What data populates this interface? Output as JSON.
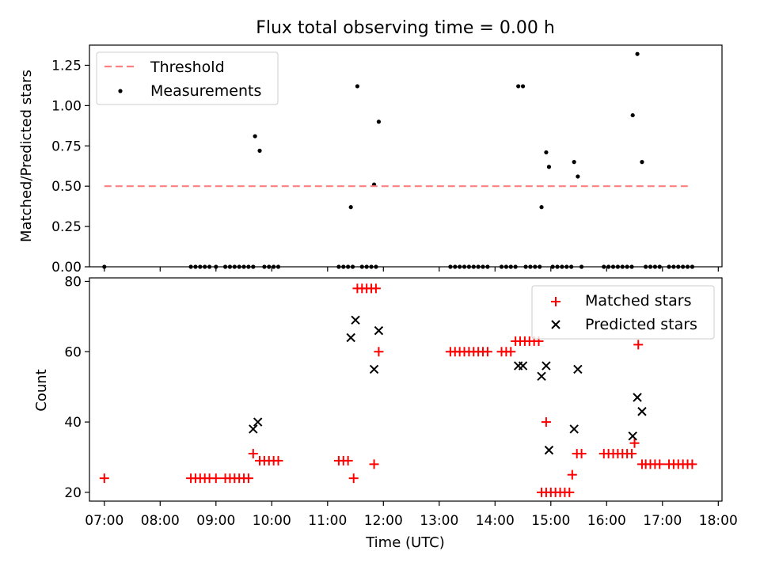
{
  "figure": {
    "title": "Flux total observing time = 0.00 h",
    "xlabel": "Time (UTC)"
  },
  "chart_data": [
    {
      "type": "scatter",
      "title": "Flux total observing time = 0.00 h",
      "xlabel": "",
      "ylabel": "Matched/Predicted stars",
      "ylim": [
        0,
        1.375
      ],
      "xlim": [
        "06:44",
        "18:04"
      ],
      "yticks": [
        "0.00",
        "0.25",
        "0.50",
        "0.75",
        "1.00",
        "1.25"
      ],
      "xtick_labels_shown": false,
      "grid": false,
      "legend": {
        "position": "upper-left",
        "entries": [
          "Threshold",
          "Measurements"
        ]
      },
      "threshold": {
        "name": "Threshold",
        "y": 0.5,
        "x_start": "07:00",
        "x_end": "17:30",
        "color": "#ff8080",
        "style": "dashed"
      },
      "series": [
        {
          "name": "Measurements",
          "marker": "dot",
          "color": "#000000",
          "points": [
            [
              "07:00",
              0.0
            ],
            [
              "08:33",
              0.0
            ],
            [
              "08:38",
              0.0
            ],
            [
              "08:43",
              0.0
            ],
            [
              "08:48",
              0.0
            ],
            [
              "08:53",
              0.0
            ],
            [
              "09:00",
              0.0
            ],
            [
              "09:10",
              0.0
            ],
            [
              "09:15",
              0.0
            ],
            [
              "09:20",
              0.0
            ],
            [
              "09:25",
              0.0
            ],
            [
              "09:30",
              0.0
            ],
            [
              "09:35",
              0.0
            ],
            [
              "09:40",
              0.0
            ],
            [
              "09:42",
              0.81
            ],
            [
              "09:47",
              0.72
            ],
            [
              "09:52",
              0.0
            ],
            [
              "09:57",
              0.0
            ],
            [
              "10:02",
              0.0
            ],
            [
              "10:07",
              0.0
            ],
            [
              "11:12",
              0.0
            ],
            [
              "11:17",
              0.0
            ],
            [
              "11:22",
              0.0
            ],
            [
              "11:27",
              0.0
            ],
            [
              "11:25",
              0.37
            ],
            [
              "11:32",
              1.12
            ],
            [
              "11:37",
              0.0
            ],
            [
              "11:42",
              0.0
            ],
            [
              "11:47",
              0.0
            ],
            [
              "11:52",
              0.0
            ],
            [
              "11:50",
              0.51
            ],
            [
              "11:55",
              0.9
            ],
            [
              "13:12",
              0.0
            ],
            [
              "13:17",
              0.0
            ],
            [
              "13:22",
              0.0
            ],
            [
              "13:27",
              0.0
            ],
            [
              "13:32",
              0.0
            ],
            [
              "13:37",
              0.0
            ],
            [
              "13:42",
              0.0
            ],
            [
              "13:47",
              0.0
            ],
            [
              "13:52",
              0.0
            ],
            [
              "14:07",
              0.0
            ],
            [
              "14:12",
              0.0
            ],
            [
              "14:17",
              0.0
            ],
            [
              "14:22",
              0.0
            ],
            [
              "14:25",
              1.12
            ],
            [
              "14:30",
              1.12
            ],
            [
              "14:33",
              0.0
            ],
            [
              "14:38",
              0.0
            ],
            [
              "14:43",
              0.0
            ],
            [
              "14:48",
              0.0
            ],
            [
              "14:50",
              0.37
            ],
            [
              "14:55",
              0.71
            ],
            [
              "14:58",
              0.62
            ],
            [
              "15:02",
              0.0
            ],
            [
              "15:07",
              0.0
            ],
            [
              "15:12",
              0.0
            ],
            [
              "15:17",
              0.0
            ],
            [
              "15:22",
              0.0
            ],
            [
              "15:25",
              0.65
            ],
            [
              "15:29",
              0.56
            ],
            [
              "15:33",
              0.0
            ],
            [
              "15:57",
              0.0
            ],
            [
              "16:02",
              0.0
            ],
            [
              "16:07",
              0.0
            ],
            [
              "16:12",
              0.0
            ],
            [
              "16:17",
              0.0
            ],
            [
              "16:22",
              0.0
            ],
            [
              "16:27",
              0.0
            ],
            [
              "16:28",
              0.94
            ],
            [
              "16:33",
              1.32
            ],
            [
              "16:38",
              0.65
            ],
            [
              "16:42",
              0.0
            ],
            [
              "16:47",
              0.0
            ],
            [
              "16:52",
              0.0
            ],
            [
              "16:57",
              0.0
            ],
            [
              "17:07",
              0.0
            ],
            [
              "17:12",
              0.0
            ],
            [
              "17:17",
              0.0
            ],
            [
              "17:22",
              0.0
            ],
            [
              "17:27",
              0.0
            ],
            [
              "17:32",
              0.0
            ]
          ]
        }
      ]
    },
    {
      "type": "scatter",
      "xlabel": "Time (UTC)",
      "ylabel": "Count",
      "ylim": [
        17.5,
        81
      ],
      "xlim": [
        "06:44",
        "18:04"
      ],
      "yticks": [
        "20",
        "40",
        "60",
        "80"
      ],
      "xticks": [
        "07:00",
        "08:00",
        "09:00",
        "10:00",
        "11:00",
        "12:00",
        "13:00",
        "14:00",
        "15:00",
        "16:00",
        "17:00",
        "18:00"
      ],
      "grid": false,
      "legend": {
        "position": "upper-right",
        "entries": [
          "Matched stars",
          "Predicted stars"
        ]
      },
      "series": [
        {
          "name": "Matched stars",
          "marker": "plus",
          "color": "#ff0000",
          "points": [
            [
              "07:00",
              24
            ],
            [
              "08:33",
              24
            ],
            [
              "08:38",
              24
            ],
            [
              "08:43",
              24
            ],
            [
              "08:48",
              24
            ],
            [
              "08:53",
              24
            ],
            [
              "09:00",
              24
            ],
            [
              "09:10",
              24
            ],
            [
              "09:15",
              24
            ],
            [
              "09:20",
              24
            ],
            [
              "09:25",
              24
            ],
            [
              "09:30",
              24
            ],
            [
              "09:35",
              24
            ],
            [
              "09:40",
              31
            ],
            [
              "09:47",
              29
            ],
            [
              "09:52",
              29
            ],
            [
              "09:57",
              29
            ],
            [
              "10:02",
              29
            ],
            [
              "10:07",
              29
            ],
            [
              "11:12",
              29
            ],
            [
              "11:17",
              29
            ],
            [
              "11:22",
              29
            ],
            [
              "11:28",
              24
            ],
            [
              "11:32",
              78
            ],
            [
              "11:37",
              78
            ],
            [
              "11:42",
              78
            ],
            [
              "11:47",
              78
            ],
            [
              "11:52",
              78
            ],
            [
              "11:50",
              28
            ],
            [
              "11:55",
              60
            ],
            [
              "13:12",
              60
            ],
            [
              "13:17",
              60
            ],
            [
              "13:22",
              60
            ],
            [
              "13:27",
              60
            ],
            [
              "13:32",
              60
            ],
            [
              "13:37",
              60
            ],
            [
              "13:42",
              60
            ],
            [
              "13:47",
              60
            ],
            [
              "13:52",
              60
            ],
            [
              "14:07",
              60
            ],
            [
              "14:12",
              60
            ],
            [
              "14:17",
              60
            ],
            [
              "14:22",
              63
            ],
            [
              "14:27",
              63
            ],
            [
              "14:32",
              63
            ],
            [
              "14:37",
              63
            ],
            [
              "14:42",
              63
            ],
            [
              "14:47",
              63
            ],
            [
              "14:55",
              40
            ],
            [
              "14:50",
              20
            ],
            [
              "14:55",
              20
            ],
            [
              "15:00",
              20
            ],
            [
              "15:05",
              20
            ],
            [
              "15:10",
              20
            ],
            [
              "15:15",
              20
            ],
            [
              "15:20",
              20
            ],
            [
              "15:23",
              25
            ],
            [
              "15:28",
              31
            ],
            [
              "15:33",
              31
            ],
            [
              "15:57",
              31
            ],
            [
              "16:02",
              31
            ],
            [
              "16:07",
              31
            ],
            [
              "16:12",
              31
            ],
            [
              "16:17",
              31
            ],
            [
              "16:22",
              31
            ],
            [
              "16:27",
              31
            ],
            [
              "16:30",
              34
            ],
            [
              "16:34",
              62
            ],
            [
              "16:38",
              28
            ],
            [
              "16:42",
              28
            ],
            [
              "16:47",
              28
            ],
            [
              "16:52",
              28
            ],
            [
              "16:57",
              28
            ],
            [
              "17:07",
              28
            ],
            [
              "17:12",
              28
            ],
            [
              "17:17",
              28
            ],
            [
              "17:22",
              28
            ],
            [
              "17:27",
              28
            ],
            [
              "17:32",
              28
            ]
          ]
        },
        {
          "name": "Predicted stars",
          "marker": "x",
          "color": "#000000",
          "points": [
            [
              "09:40",
              38
            ],
            [
              "09:45",
              40
            ],
            [
              "11:25",
              64
            ],
            [
              "11:30",
              69
            ],
            [
              "11:50",
              55
            ],
            [
              "11:55",
              66
            ],
            [
              "14:25",
              56
            ],
            [
              "14:30",
              56
            ],
            [
              "14:50",
              53
            ],
            [
              "14:55",
              56
            ],
            [
              "14:58",
              32
            ],
            [
              "15:25",
              38
            ],
            [
              "15:29",
              55
            ],
            [
              "16:28",
              36
            ],
            [
              "16:33",
              47
            ],
            [
              "16:38",
              43
            ]
          ]
        }
      ]
    }
  ]
}
